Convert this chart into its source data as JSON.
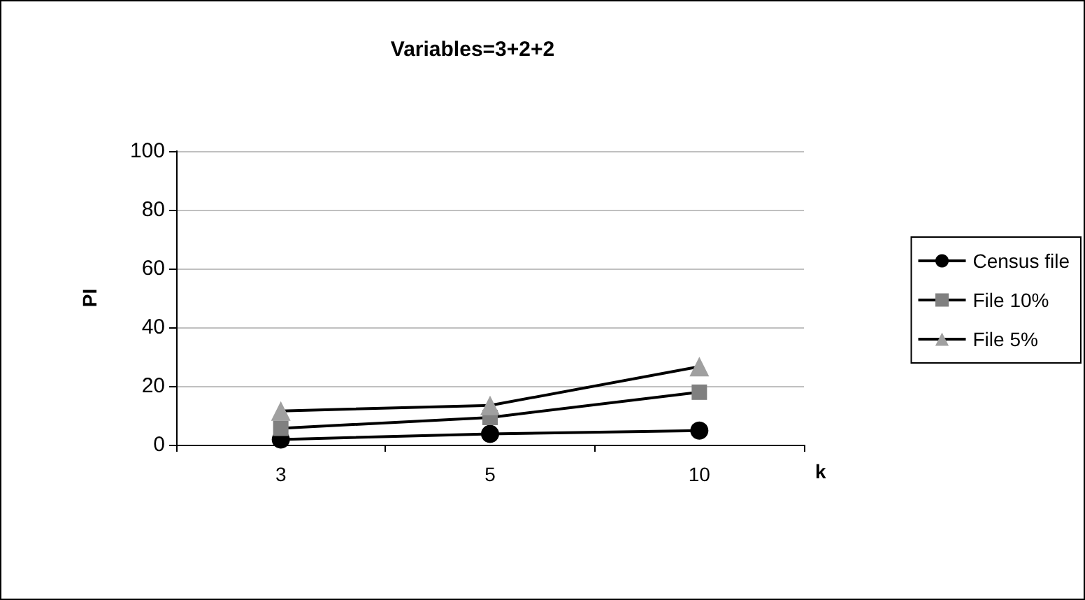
{
  "chart_data": {
    "type": "line",
    "title": "Variables=3+2+2",
    "xlabel": "k",
    "ylabel": "PI",
    "categories": [
      "3",
      "5",
      "10"
    ],
    "series": [
      {
        "name": "Census file",
        "color": "#000000",
        "marker": "circle",
        "values": [
          1.8,
          3.7,
          4.8
        ]
      },
      {
        "name": "File 10%",
        "color": "#808080",
        "marker": "square",
        "values": [
          5.6,
          9.3,
          17.9
        ]
      },
      {
        "name": "File 5%",
        "color": "#a0a0a0",
        "marker": "triangle",
        "values": [
          11.5,
          13.4,
          26.6
        ]
      }
    ],
    "ylim": [
      0,
      100
    ],
    "yticks": [
      0,
      20,
      40,
      60,
      80,
      100
    ],
    "grid": "y",
    "legend": "right",
    "line_style": "solid"
  }
}
